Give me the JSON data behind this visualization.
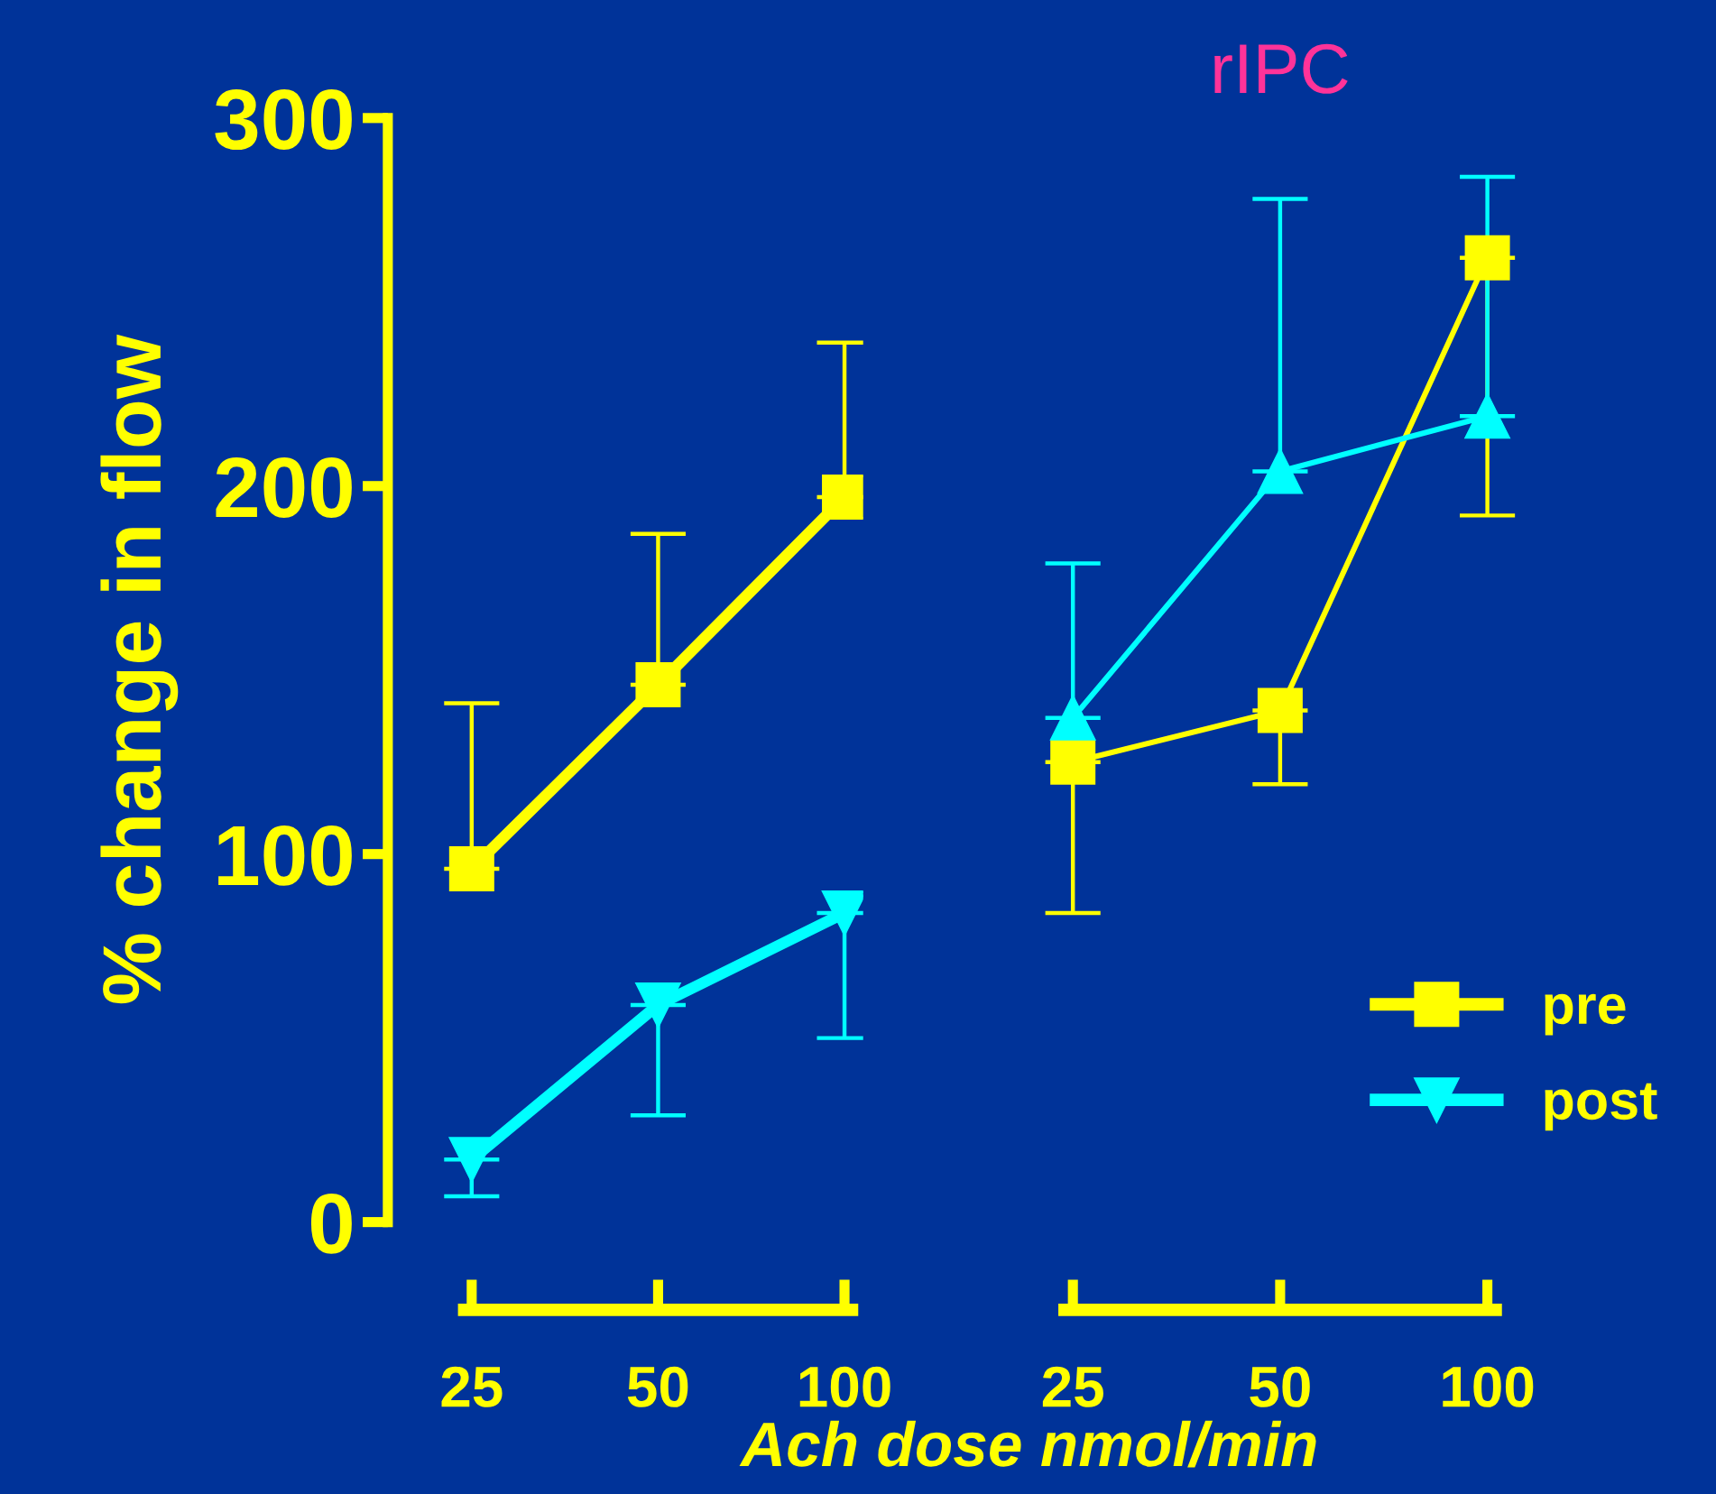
{
  "chart_data": [
    {
      "type": "line",
      "categories": [
        "25",
        "50",
        "100"
      ],
      "ylabel": "% change in flow",
      "xlabel": "Ach dose nmol/min",
      "ylim": [
        0,
        300
      ],
      "yticks": [
        0,
        100,
        200,
        300
      ],
      "grid": false,
      "legend": "bottom right",
      "line_style": "solid",
      "series": [
        {
          "name": "pre",
          "color": "#ffff00",
          "marker": "square",
          "values": [
            96,
            146,
            197
          ],
          "errors": [
            [
              96,
              141
            ],
            [
              146,
              187
            ],
            [
              197,
              239
            ]
          ]
        },
        {
          "name": "post",
          "color": "#00ffff",
          "marker": "triangle_down",
          "values": [
            17,
            59,
            84
          ],
          "errors": [
            [
              7,
              17
            ],
            [
              29,
              59
            ],
            [
              50,
              84
            ]
          ]
        }
      ]
    },
    {
      "type": "line",
      "title": "rIPC",
      "categories": [
        "25",
        "50",
        "100"
      ],
      "ylim": [
        0,
        300
      ],
      "tick_labels": "x",
      "grid": false,
      "line_style": "solid",
      "series": [
        {
          "color": "#ffff00",
          "marker": "square",
          "values": [
            125,
            139,
            262
          ],
          "errors": [
            [
              84,
              125
            ],
            [
              119,
              139
            ],
            [
              192,
              262
            ]
          ]
        },
        {
          "color": "#00ffff",
          "marker": "triangle",
          "values": [
            137,
            204,
            219
          ],
          "errors": [
            [
              137,
              179
            ],
            [
              204,
              278
            ],
            [
              219,
              284
            ]
          ]
        }
      ]
    }
  ]
}
